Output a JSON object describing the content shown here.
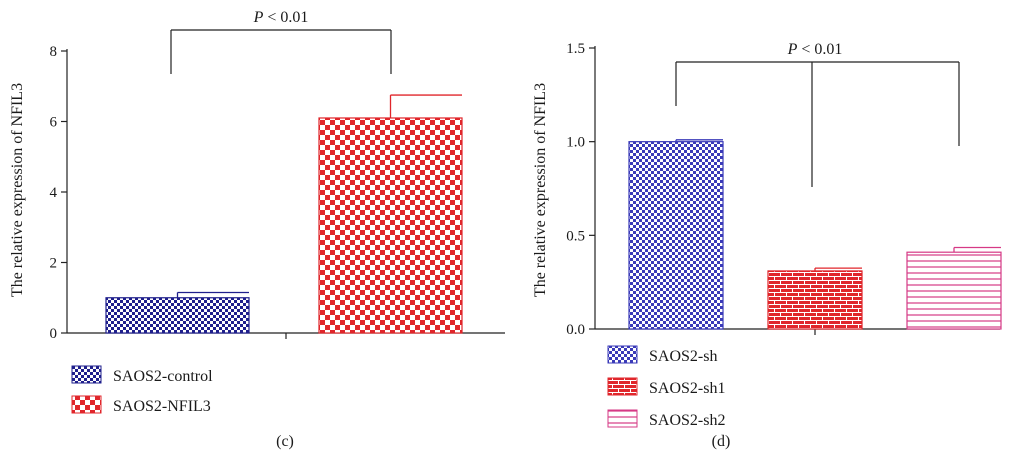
{
  "chart_data": [
    {
      "panel_label": "(c)",
      "type": "bar",
      "categories": [
        "SAOS2-control",
        "SAOS2-NFIL3"
      ],
      "values": [
        1.0,
        6.1
      ],
      "errors": [
        0.15,
        0.65
      ],
      "ylabel": "The relative expression of NFIL3",
      "ylim": [
        0,
        8
      ],
      "yticks": [
        "0",
        "2",
        "4",
        "6",
        "8"
      ],
      "legend": [
        "SAOS2-control",
        "SAOS2-NFIL3"
      ],
      "legend_position": "bottom-left",
      "significance": {
        "p_italic": "P",
        "p_rest": " < 0.01"
      },
      "colors": [
        "#1f1f8c",
        "#e0262b"
      ],
      "patterns": [
        "checker-small",
        "checker-large"
      ]
    },
    {
      "panel_label": "(d)",
      "type": "bar",
      "categories": [
        "SAOS2-sh",
        "SAOS2-sh1",
        "SAOS2-sh2"
      ],
      "values": [
        1.0,
        0.31,
        0.41
      ],
      "errors": [
        0.01,
        0.015,
        0.025
      ],
      "ylabel": "The relative expression of NFIL3",
      "ylim": [
        0,
        1.5
      ],
      "yticks": [
        "0.0",
        "0.5",
        "1.0",
        "1.5"
      ],
      "legend": [
        "SAOS2-sh",
        "SAOS2-sh1",
        "SAOS2-sh2"
      ],
      "legend_position": "bottom-left",
      "significance": {
        "p_italic": "P",
        "p_rest": " < 0.01"
      },
      "colors": [
        "#3a3ab8",
        "#e0262b",
        "#d63a86"
      ],
      "patterns": [
        "checker-small",
        "brick",
        "hlines"
      ]
    }
  ]
}
